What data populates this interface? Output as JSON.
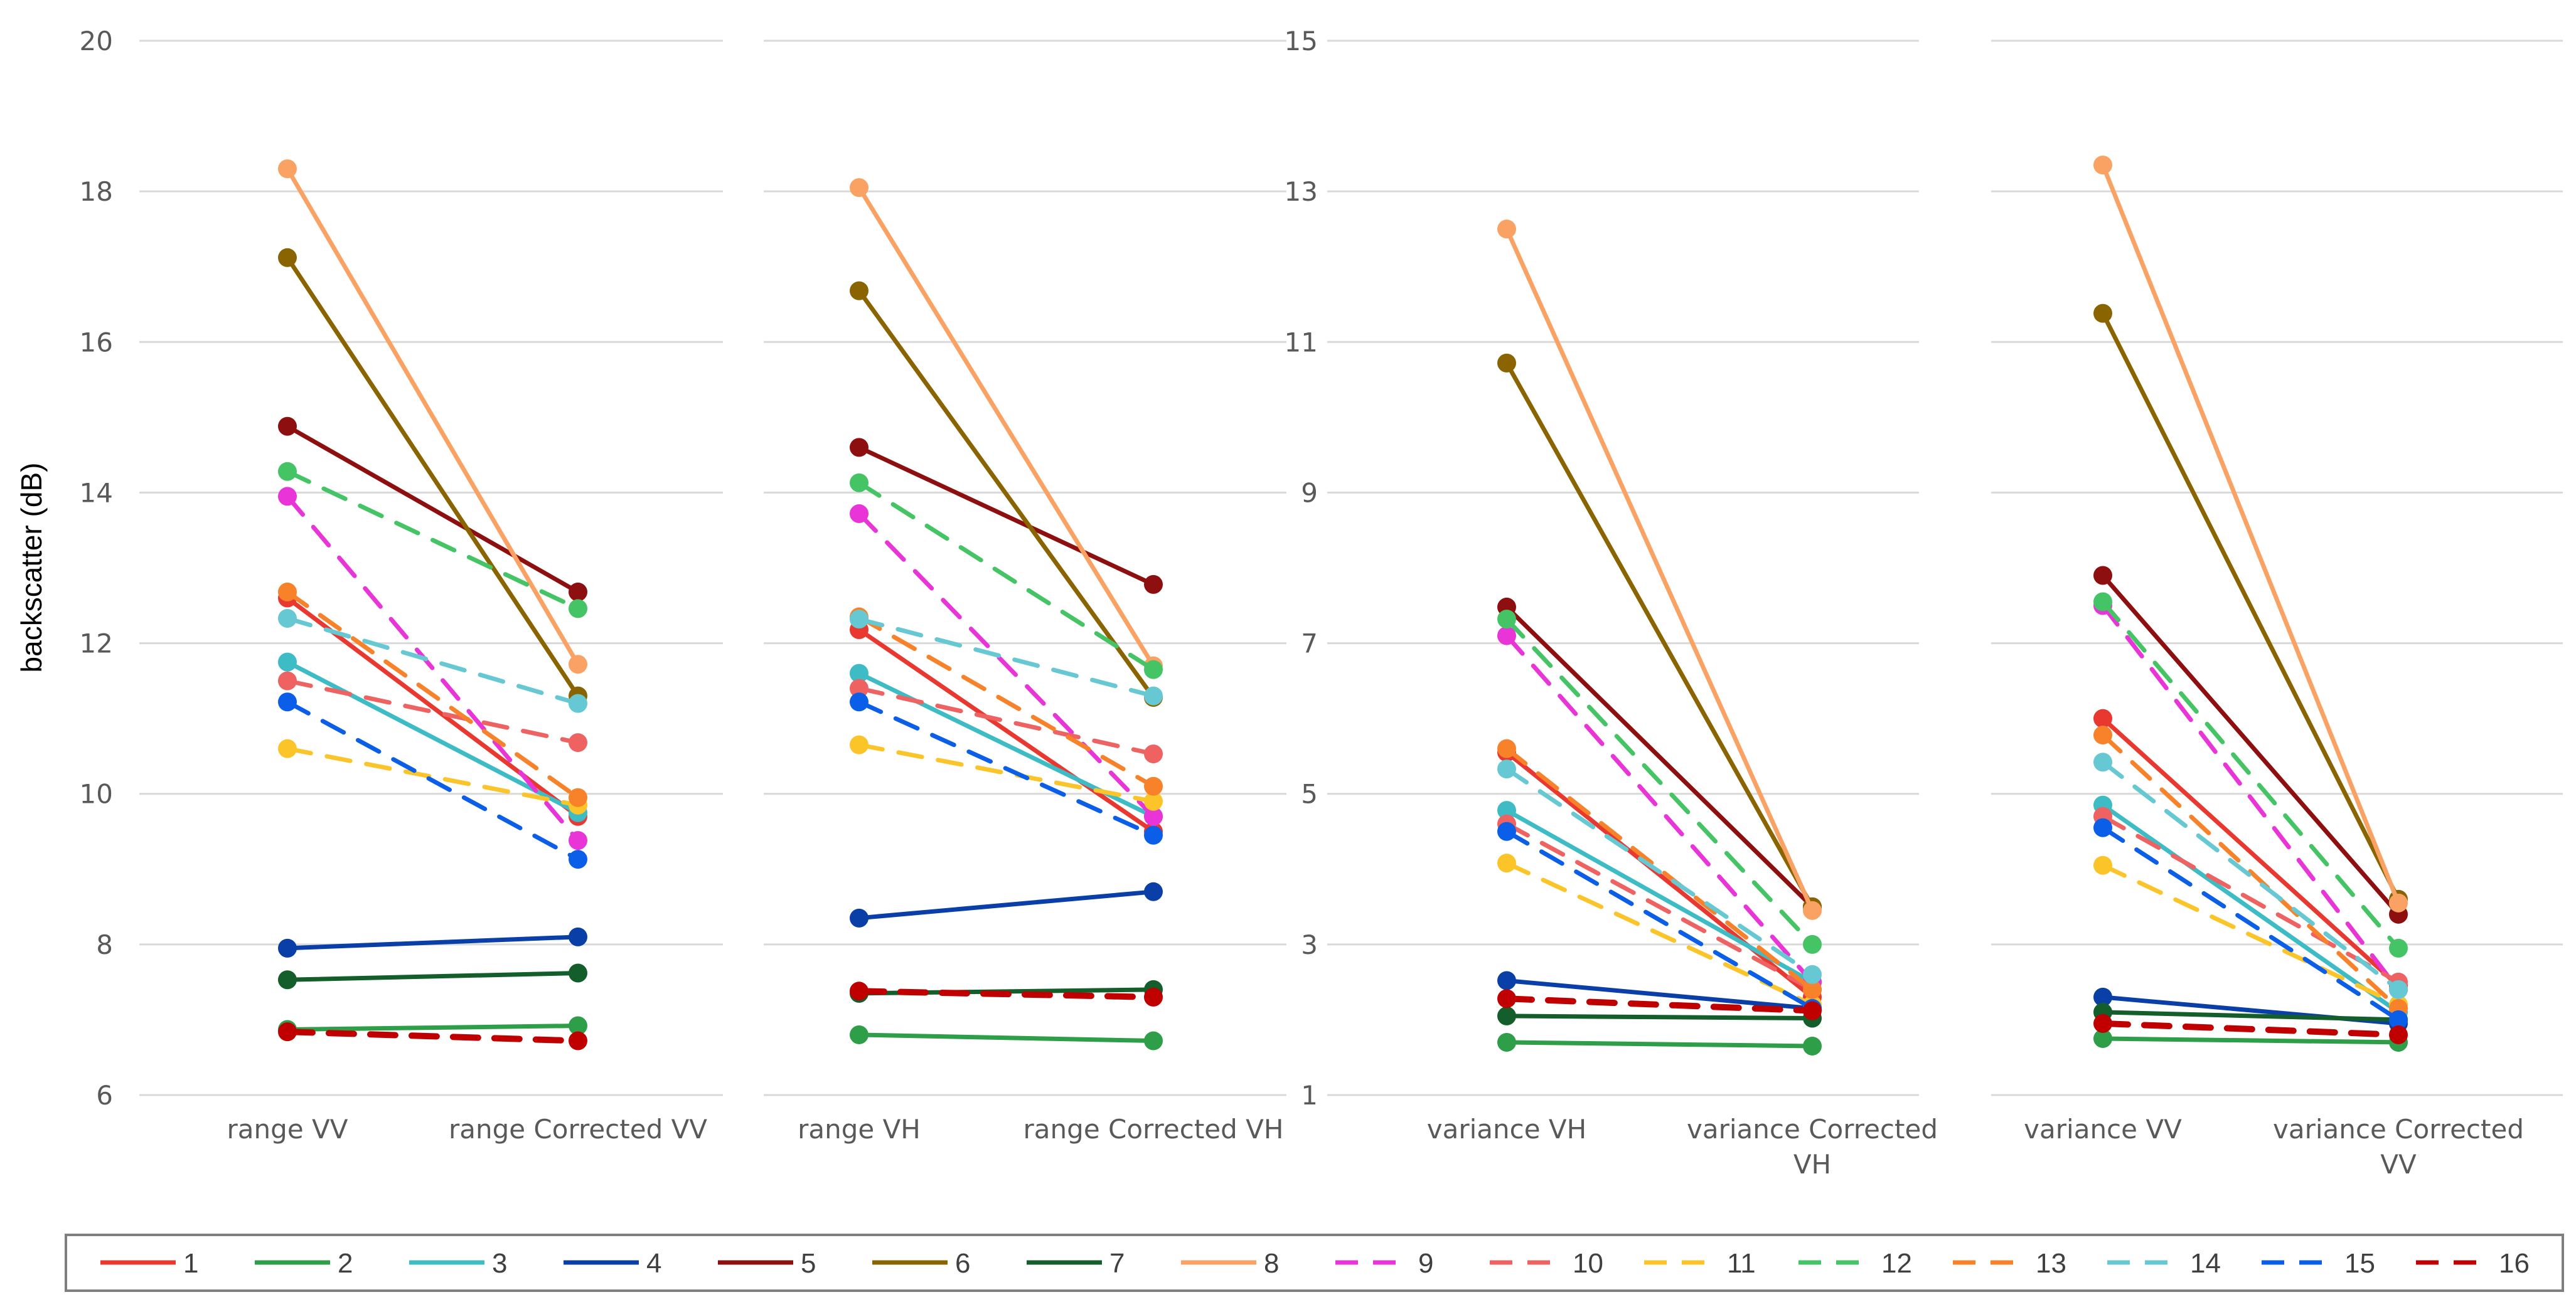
{
  "chart_data": [
    {
      "type": "line",
      "ylabel": "backscatter (dB)",
      "ylim": [
        6,
        20
      ],
      "yticks": [
        "6",
        "8",
        "10",
        "12",
        "14",
        "16",
        "18",
        "20"
      ],
      "categories": [
        "range VV",
        "range Corrected VV"
      ],
      "grid": true,
      "series": [
        {
          "name": "1",
          "values": [
            12.6,
            9.7
          ]
        },
        {
          "name": "2",
          "values": [
            6.87,
            6.92
          ]
        },
        {
          "name": "3",
          "values": [
            11.75,
            9.75
          ]
        },
        {
          "name": "4",
          "values": [
            7.95,
            8.1
          ]
        },
        {
          "name": "5",
          "values": [
            14.88,
            12.68
          ]
        },
        {
          "name": "6",
          "values": [
            17.12,
            11.3
          ]
        },
        {
          "name": "7",
          "values": [
            7.53,
            7.62
          ]
        },
        {
          "name": "8",
          "values": [
            18.3,
            11.72
          ]
        },
        {
          "name": "9",
          "values": [
            13.95,
            9.38
          ]
        },
        {
          "name": "10",
          "values": [
            11.5,
            10.68
          ]
        },
        {
          "name": "11",
          "values": [
            10.6,
            9.85
          ]
        },
        {
          "name": "12",
          "values": [
            14.28,
            12.46
          ]
        },
        {
          "name": "13",
          "values": [
            12.68,
            9.95
          ]
        },
        {
          "name": "14",
          "values": [
            12.33,
            11.2
          ]
        },
        {
          "name": "15",
          "values": [
            11.22,
            9.13
          ]
        },
        {
          "name": "16",
          "values": [
            6.84,
            6.72
          ]
        }
      ]
    },
    {
      "type": "line",
      "ylim": [
        6,
        20
      ],
      "categories": [
        "range VH",
        "range Corrected VH"
      ],
      "grid": true,
      "series": [
        {
          "name": "1",
          "values": [
            12.18,
            9.5
          ]
        },
        {
          "name": "2",
          "values": [
            6.8,
            6.72
          ]
        },
        {
          "name": "3",
          "values": [
            11.6,
            9.7
          ]
        },
        {
          "name": "4",
          "values": [
            8.35,
            8.7
          ]
        },
        {
          "name": "5",
          "values": [
            14.6,
            12.78
          ]
        },
        {
          "name": "6",
          "values": [
            16.68,
            11.28
          ]
        },
        {
          "name": "7",
          "values": [
            7.35,
            7.4
          ]
        },
        {
          "name": "8",
          "values": [
            18.05,
            11.7
          ]
        },
        {
          "name": "9",
          "values": [
            13.72,
            9.7
          ]
        },
        {
          "name": "10",
          "values": [
            11.4,
            10.53
          ]
        },
        {
          "name": "11",
          "values": [
            10.65,
            9.9
          ]
        },
        {
          "name": "12",
          "values": [
            14.13,
            11.65
          ]
        },
        {
          "name": "13",
          "values": [
            12.35,
            10.1
          ]
        },
        {
          "name": "14",
          "values": [
            12.32,
            11.3
          ]
        },
        {
          "name": "15",
          "values": [
            11.22,
            9.45
          ]
        },
        {
          "name": "16",
          "values": [
            7.38,
            7.3
          ]
        }
      ]
    },
    {
      "type": "line",
      "ylim": [
        1,
        15
      ],
      "yticks": [
        "1",
        "3",
        "5",
        "7",
        "9",
        "11",
        "13",
        "15"
      ],
      "categories": [
        "variance VH",
        [
          "variance Corrected",
          "VH"
        ]
      ],
      "grid": true,
      "series": [
        {
          "name": "1",
          "values": [
            5.55,
            2.3
          ]
        },
        {
          "name": "2",
          "values": [
            1.7,
            1.65
          ]
        },
        {
          "name": "3",
          "values": [
            4.78,
            2.5
          ]
        },
        {
          "name": "4",
          "values": [
            2.52,
            2.15
          ]
        },
        {
          "name": "5",
          "values": [
            7.48,
            3.5
          ]
        },
        {
          "name": "6",
          "values": [
            10.72,
            3.5
          ]
        },
        {
          "name": "7",
          "values": [
            2.05,
            2.02
          ]
        },
        {
          "name": "8",
          "values": [
            12.5,
            3.45
          ]
        },
        {
          "name": "9",
          "values": [
            7.1,
            2.5
          ]
        },
        {
          "name": "10",
          "values": [
            4.6,
            2.4
          ]
        },
        {
          "name": "11",
          "values": [
            4.08,
            2.2
          ]
        },
        {
          "name": "12",
          "values": [
            7.32,
            3.0
          ]
        },
        {
          "name": "13",
          "values": [
            5.6,
            2.4
          ]
        },
        {
          "name": "14",
          "values": [
            5.33,
            2.6
          ]
        },
        {
          "name": "15",
          "values": [
            4.5,
            2.15
          ]
        },
        {
          "name": "16",
          "values": [
            2.28,
            2.12
          ]
        }
      ]
    },
    {
      "type": "line",
      "ylim": [
        1,
        15
      ],
      "categories": [
        "variance VV",
        [
          "variance Corrected",
          "VV"
        ]
      ],
      "grid": true,
      "series": [
        {
          "name": "1",
          "values": [
            6.0,
            2.45
          ]
        },
        {
          "name": "2",
          "values": [
            1.75,
            1.7
          ]
        },
        {
          "name": "3",
          "values": [
            4.85,
            2.1
          ]
        },
        {
          "name": "4",
          "values": [
            2.3,
            1.95
          ]
        },
        {
          "name": "5",
          "values": [
            7.9,
            3.4
          ]
        },
        {
          "name": "6",
          "values": [
            11.38,
            3.6
          ]
        },
        {
          "name": "7",
          "values": [
            2.1,
            2.0
          ]
        },
        {
          "name": "8",
          "values": [
            13.35,
            3.55
          ]
        },
        {
          "name": "9",
          "values": [
            7.5,
            2.4
          ]
        },
        {
          "name": "10",
          "values": [
            4.7,
            2.5
          ]
        },
        {
          "name": "11",
          "values": [
            4.05,
            2.2
          ]
        },
        {
          "name": "12",
          "values": [
            7.55,
            2.95
          ]
        },
        {
          "name": "13",
          "values": [
            5.78,
            2.15
          ]
        },
        {
          "name": "14",
          "values": [
            5.42,
            2.4
          ]
        },
        {
          "name": "15",
          "values": [
            4.55,
            2.0
          ]
        },
        {
          "name": "16",
          "values": [
            1.95,
            1.8
          ]
        }
      ]
    }
  ],
  "legend": {
    "placement": "bottom",
    "entries": [
      {
        "name": "1",
        "color": "#e8382f",
        "dashed": false
      },
      {
        "name": "2",
        "color": "#2e9e48",
        "dashed": false
      },
      {
        "name": "3",
        "color": "#3dbcc6",
        "dashed": false
      },
      {
        "name": "4",
        "color": "#0b3fa8",
        "dashed": false
      },
      {
        "name": "5",
        "color": "#8e0f0f",
        "dashed": false
      },
      {
        "name": "6",
        "color": "#8a6400",
        "dashed": false
      },
      {
        "name": "7",
        "color": "#135e2a",
        "dashed": false
      },
      {
        "name": "8",
        "color": "#f9a264",
        "dashed": false
      },
      {
        "name": "9",
        "color": "#e935d8",
        "dashed": true
      },
      {
        "name": "10",
        "color": "#ee6262",
        "dashed": true
      },
      {
        "name": "11",
        "color": "#fbc52a",
        "dashed": true
      },
      {
        "name": "12",
        "color": "#45c465",
        "dashed": true
      },
      {
        "name": "13",
        "color": "#f7822a",
        "dashed": true
      },
      {
        "name": "14",
        "color": "#66c8d2",
        "dashed": true
      },
      {
        "name": "15",
        "color": "#0a5ee8",
        "dashed": true
      },
      {
        "name": "16",
        "color": "#c00000",
        "dashed": true
      }
    ]
  }
}
